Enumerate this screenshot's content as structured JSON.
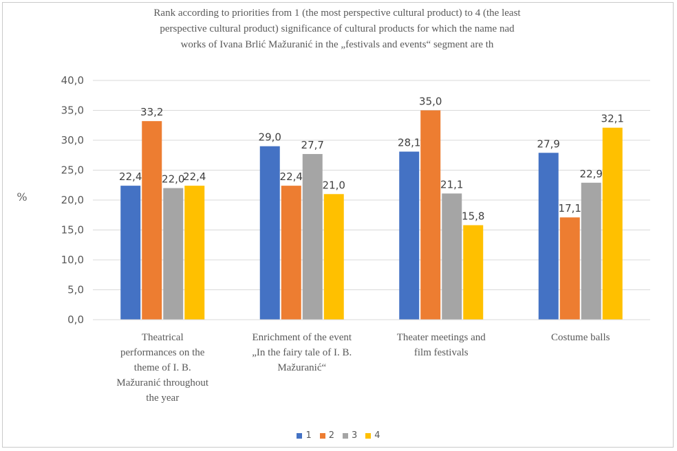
{
  "chart_data": {
    "type": "bar",
    "title": "Rank according to priorities  from 1 (the most perspective cultural product) to 4 (the least perspective cultural product) significance  of cultural products for which the name nad works of Ivana Brlić Mažuranić  in the „festivals and events“ segment are th",
    "title_lines": [
      "Rank according to priorities  from 1 (the most perspective cultural product) to 4 (the least",
      "perspective cultural product) significance  of cultural products for which the name nad",
      "works of Ivana Brlić Mažuranić  in the „festivals and events“ segment are th"
    ],
    "ylabel": "%",
    "xlabel": "",
    "ylim": [
      0,
      40
    ],
    "yticks": [
      "0,0",
      "5,0",
      "10,0",
      "15,0",
      "20,0",
      "25,0",
      "30,0",
      "35,0",
      "40,0"
    ],
    "grid": true,
    "legend_position": "bottom",
    "categories": [
      "Theatrical performances on the theme of I. B. Mažuranić throughout the year",
      "Enrichment  of the event „In the fairy tale of I. B. Mažuranić“",
      "Theater meetings and film festivals",
      "Costume balls"
    ],
    "category_lines": [
      [
        "Theatrical",
        "performances on the",
        "theme of I. B.",
        "Mažuranić throughout",
        "the year"
      ],
      [
        "Enrichment  of the event",
        "„In the fairy tale of I. B.",
        "Mažuranić“"
      ],
      [
        "Theater meetings and",
        "film festivals"
      ],
      [
        "Costume balls"
      ]
    ],
    "series": [
      {
        "name": "1",
        "color": "#4472c4",
        "values": [
          22.4,
          29.0,
          28.1,
          27.9
        ],
        "labels": [
          "22,4",
          "29,0",
          "28,1",
          "27,9"
        ]
      },
      {
        "name": "2",
        "color": "#ed7d31",
        "values": [
          33.2,
          22.4,
          35.0,
          17.1
        ],
        "labels": [
          "33,2",
          "22,4",
          "35,0",
          "17,1"
        ]
      },
      {
        "name": "3",
        "color": "#a5a5a5",
        "values": [
          22.0,
          27.7,
          21.1,
          22.9
        ],
        "labels": [
          "22,0",
          "27,7",
          "21,1",
          "22,9"
        ]
      },
      {
        "name": "4",
        "color": "#ffc000",
        "values": [
          22.4,
          21.0,
          15.8,
          32.1
        ],
        "labels": [
          "22,4",
          "21,0",
          "15,8",
          "32,1"
        ]
      }
    ]
  }
}
